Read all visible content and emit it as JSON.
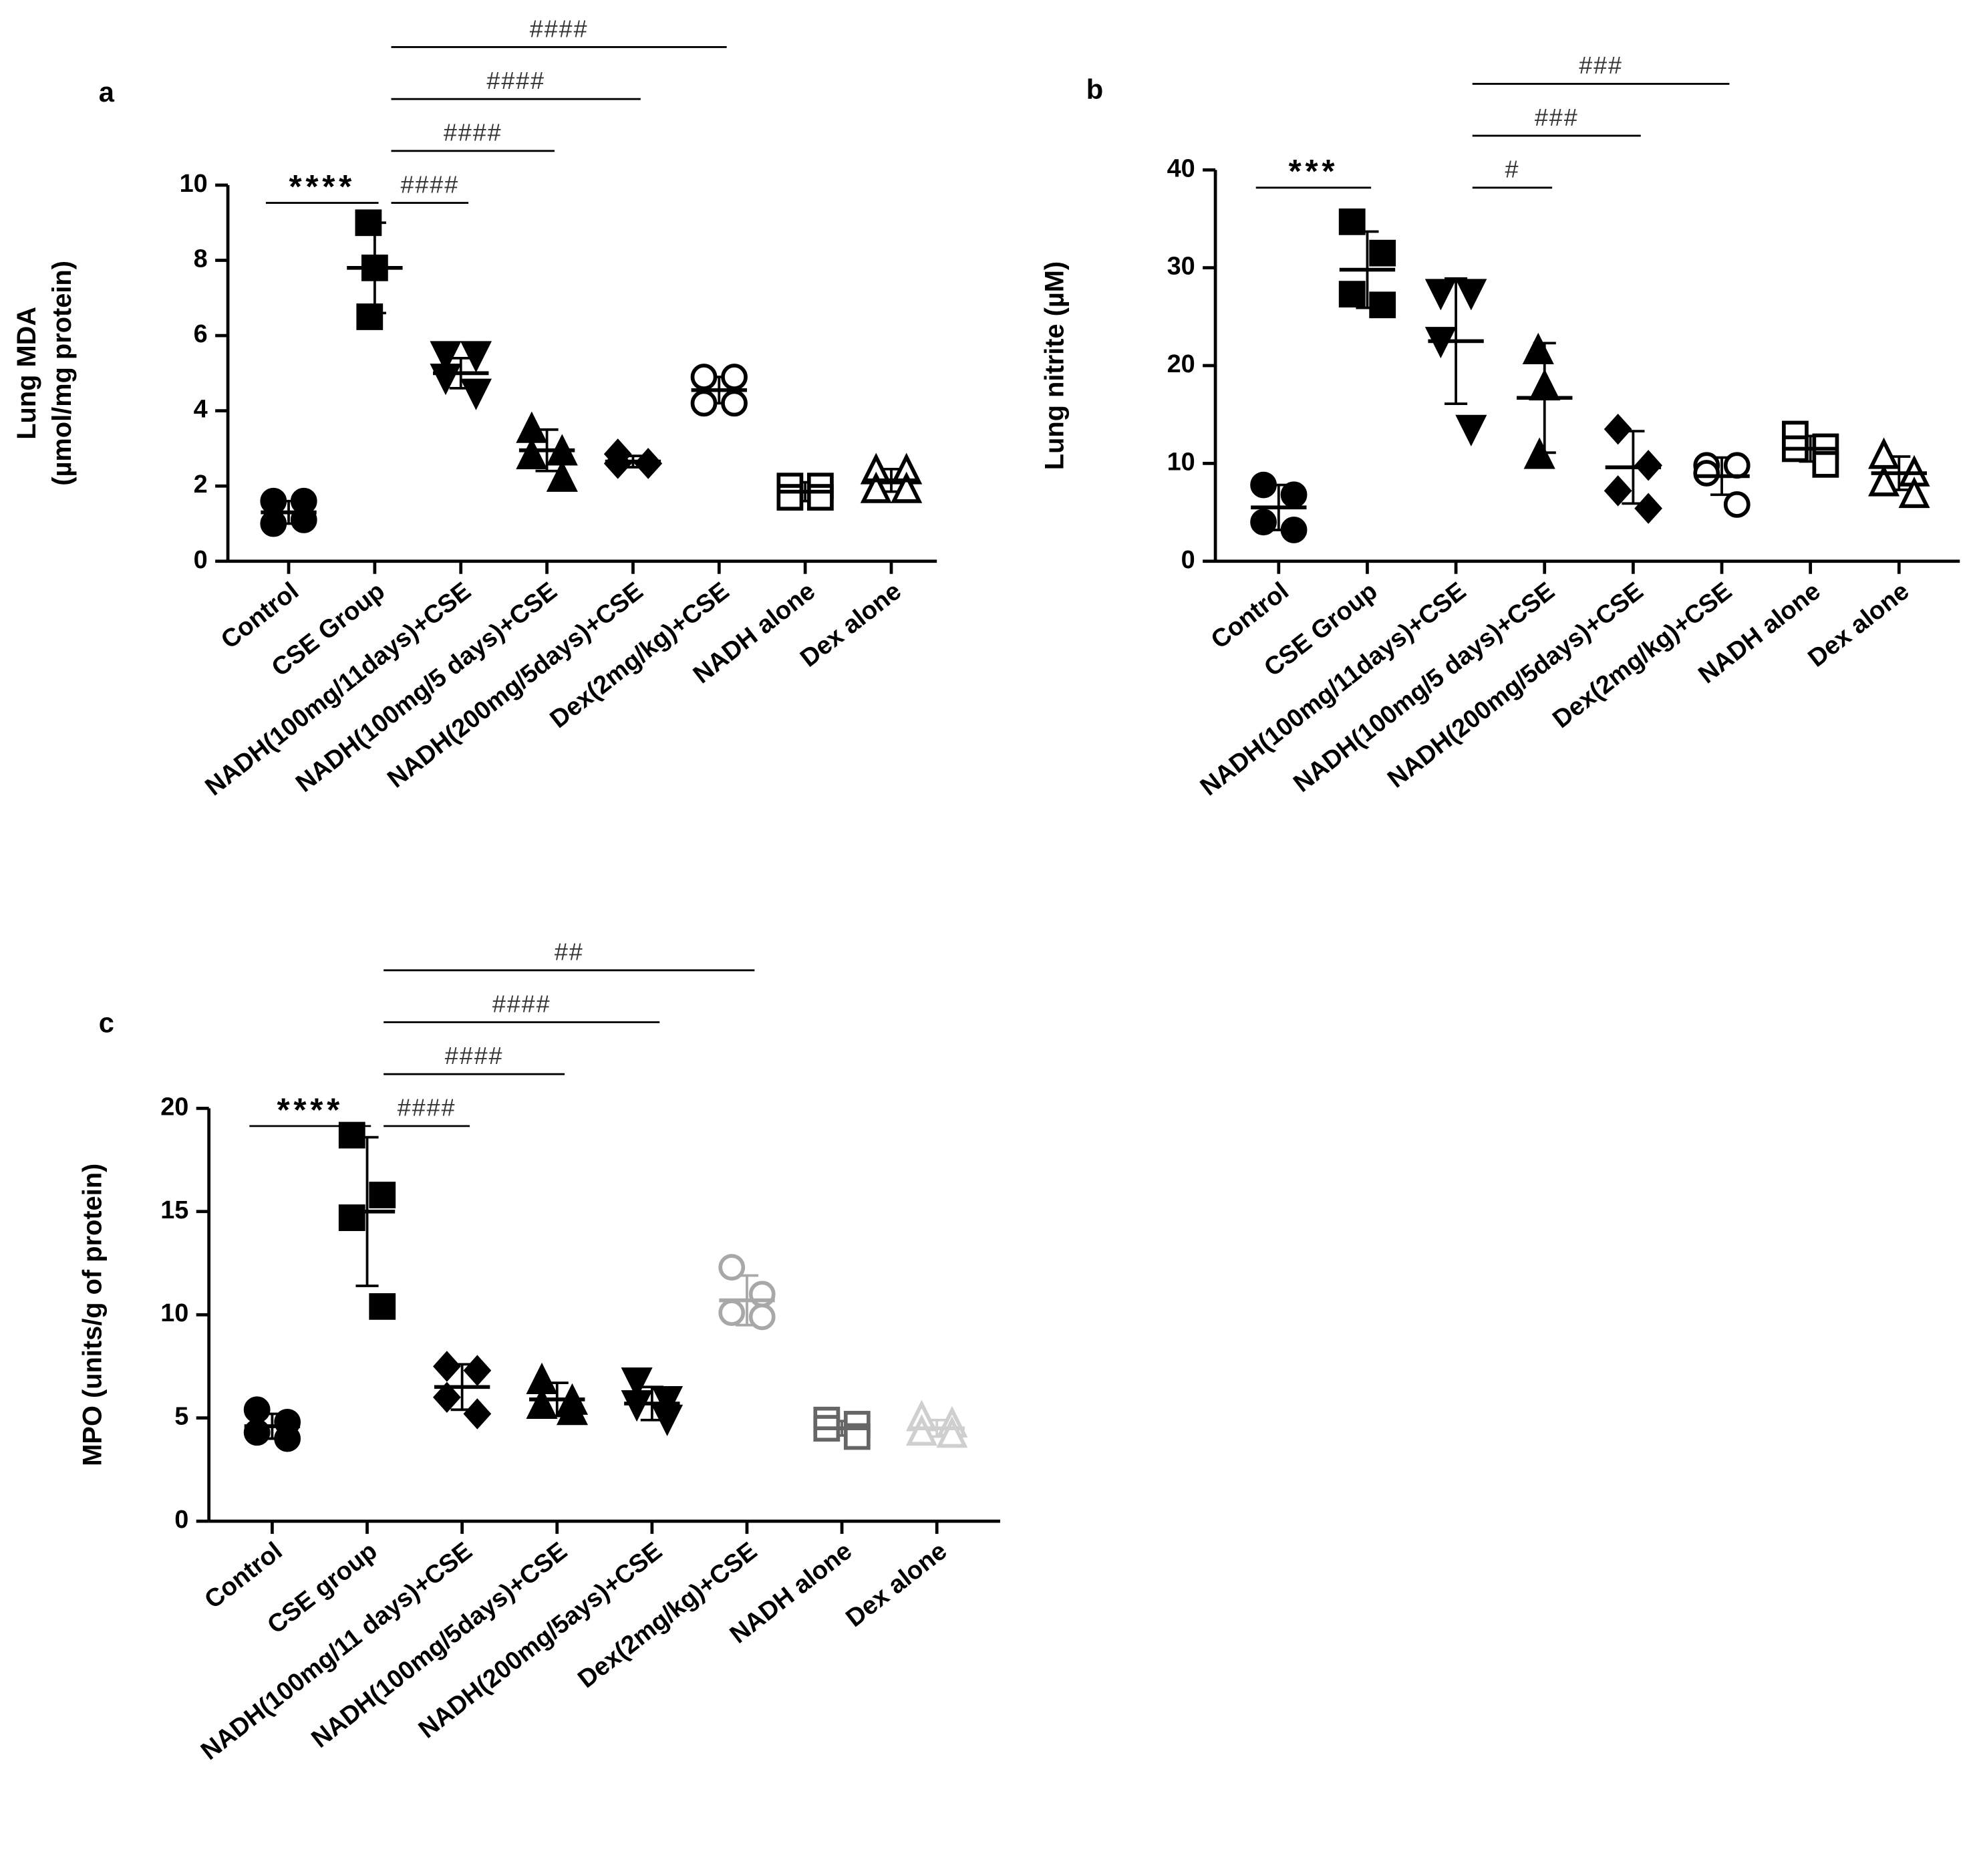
{
  "chart_data": [
    {
      "type": "dotplot",
      "panel": "a",
      "ylabel": [
        "Lung MDA",
        "(µmol/mg protein)"
      ],
      "ylim": [
        0,
        10
      ],
      "yticks": [
        0,
        2,
        4,
        6,
        8,
        10
      ],
      "categories": [
        "Control",
        "CSE Group",
        "NADH(100mg/11days)+CSE",
        "NADH(100mg/5 days)+CSE",
        "NADH(200mg/5days)+CSE",
        "Dex(2mg/kg)+CSE",
        "NADH alone",
        "Dex alone"
      ],
      "groups": [
        {
          "values": [
            1.6,
            1.6,
            1.0,
            1.1
          ],
          "mean": 1.3,
          "sd": 0.3,
          "marker": "circle",
          "filled": true,
          "color": "#000000"
        },
        {
          "values": [
            9.0,
            7.8,
            6.5
          ],
          "mean": 7.8,
          "sd": 1.2,
          "marker": "square",
          "filled": true,
          "color": "#000000"
        },
        {
          "values": [
            5.5,
            5.5,
            4.9,
            4.5
          ],
          "mean": 5.0,
          "sd": 0.4,
          "marker": "triangle-down",
          "filled": true,
          "color": "#000000"
        },
        {
          "values": [
            3.5,
            2.9,
            2.8,
            2.2
          ],
          "mean": 2.95,
          "sd": 0.55,
          "marker": "triangle-up",
          "filled": true,
          "color": "#000000"
        },
        {
          "values": [
            2.85,
            2.6,
            2.6,
            2.6
          ],
          "mean": 2.65,
          "sd": 0.15,
          "marker": "diamond",
          "filled": true,
          "color": "#000000"
        },
        {
          "values": [
            4.9,
            4.9,
            4.2,
            4.2
          ],
          "mean": 4.55,
          "sd": 0.35,
          "marker": "circle",
          "filled": false,
          "color": "#000000"
        },
        {
          "values": [
            2.0,
            2.0,
            1.7,
            1.7
          ],
          "mean": 1.85,
          "sd": 0.25,
          "marker": "square",
          "filled": false,
          "color": "#000000"
        },
        {
          "values": [
            2.4,
            2.4,
            1.9,
            1.9
          ],
          "mean": 2.15,
          "sd": 0.3,
          "marker": "triangle-up",
          "filled": false,
          "color": "#000000"
        }
      ],
      "brackets": [
        {
          "text": "****",
          "from": "Control",
          "to": "CSE Group"
        },
        {
          "text": "####",
          "from": "CSE Group",
          "to": "NADH(100mg/11days)+CSE"
        },
        {
          "text": "####",
          "from": "CSE Group",
          "to": "NADH(100mg/5 days)+CSE"
        },
        {
          "text": "####",
          "from": "CSE Group",
          "to": "NADH(200mg/5days)+CSE"
        },
        {
          "text": "####",
          "from": "CSE Group",
          "to": "Dex(2mg/kg)+CSE"
        }
      ]
    },
    {
      "type": "dotplot",
      "panel": "b",
      "ylabel": [
        "Lung nitrite (µM)"
      ],
      "ylim": [
        0,
        40
      ],
      "yticks": [
        0,
        10,
        20,
        30,
        40
      ],
      "categories": [
        "Control",
        "CSE Group",
        "NADH(100mg/11days)+CSE",
        "NADH(100mg/5 days)+CSE",
        "NADH(200mg/5days)+CSE",
        "Dex(2mg/kg)+CSE",
        "NADH alone",
        "Dex alone"
      ],
      "groups": [
        {
          "values": [
            7.8,
            6.8,
            4.0,
            3.2
          ],
          "mean": 5.5,
          "sd": 2.3,
          "marker": "circle",
          "filled": true,
          "color": "#000000"
        },
        {
          "values": [
            34.7,
            31.5,
            27.3,
            26.2
          ],
          "mean": 29.8,
          "sd": 3.9,
          "marker": "square",
          "filled": true,
          "color": "#000000"
        },
        {
          "values": [
            27.5,
            27.5,
            22.6,
            13.6
          ],
          "mean": 22.5,
          "sd": 6.4,
          "marker": "triangle-down",
          "filled": true,
          "color": "#000000"
        },
        {
          "values": [
            21.5,
            17.8,
            10.8
          ],
          "mean": 16.7,
          "sd": 5.6,
          "marker": "triangle-up",
          "filled": true,
          "color": "#000000"
        },
        {
          "values": [
            13.5,
            9.8,
            7.2,
            5.4
          ],
          "mean": 9.6,
          "sd": 3.7,
          "marker": "diamond",
          "filled": true,
          "color": "#000000"
        },
        {
          "values": [
            9.8,
            9.8,
            9.0,
            5.8
          ],
          "mean": 8.7,
          "sd": 1.9,
          "marker": "circle",
          "filled": false,
          "color": "#000000"
        },
        {
          "values": [
            13.0,
            11.7,
            11.5,
            9.9
          ],
          "mean": 11.5,
          "sd": 1.3,
          "marker": "square",
          "filled": false,
          "color": "#000000"
        },
        {
          "values": [
            10.8,
            9.0,
            8.0,
            6.8
          ],
          "mean": 9.0,
          "sd": 1.7,
          "marker": "triangle-up",
          "filled": false,
          "color": "#000000"
        }
      ],
      "brackets": [
        {
          "text": "***",
          "from": "Control",
          "to": "CSE Group"
        },
        {
          "text": "#",
          "from": "NADH(100mg/11days)+CSE",
          "to": "NADH(100mg/5 days)+CSE"
        },
        {
          "text": "###",
          "from": "NADH(100mg/11days)+CSE",
          "to": "NADH(200mg/5days)+CSE"
        },
        {
          "text": "###",
          "from": "NADH(100mg/11days)+CSE",
          "to": "Dex(2mg/kg)+CSE"
        }
      ]
    },
    {
      "type": "dotplot",
      "panel": "c",
      "ylabel": [
        "MPO (units/g of protein)"
      ],
      "ylim": [
        0,
        20
      ],
      "yticks": [
        0,
        5,
        10,
        15,
        20
      ],
      "categories": [
        "Control",
        "CSE group",
        "NADH(100mg/11 days)+CSE",
        "NADH(100mg/5days)+CSE",
        "NADH(200mg/5ays)+CSE",
        "Dex(2mg/kg)+CSE",
        "NADH alone",
        "Dex alone"
      ],
      "groups": [
        {
          "values": [
            5.4,
            4.8,
            4.3,
            4.0
          ],
          "mean": 4.6,
          "sd": 0.6,
          "marker": "circle",
          "filled": true,
          "color": "#000000"
        },
        {
          "values": [
            18.7,
            15.8,
            14.7,
            10.4
          ],
          "mean": 15.0,
          "sd": 3.6,
          "marker": "square",
          "filled": true,
          "color": "#000000"
        },
        {
          "values": [
            7.5,
            7.3,
            6.0,
            5.2
          ],
          "mean": 6.5,
          "sd": 1.1,
          "marker": "diamond",
          "filled": true,
          "color": "#000000"
        },
        {
          "values": [
            6.8,
            5.8,
            5.6,
            5.3
          ],
          "mean": 5.9,
          "sd": 0.8,
          "marker": "triangle-up",
          "filled": true,
          "color": "#000000"
        },
        {
          "values": [
            6.8,
            5.9,
            5.7,
            5.0
          ],
          "mean": 5.7,
          "sd": 0.8,
          "marker": "triangle-down",
          "filled": true,
          "color": "#000000"
        },
        {
          "values": [
            12.3,
            11.0,
            10.1,
            9.9
          ],
          "mean": 10.7,
          "sd": 1.2,
          "marker": "circle",
          "filled": false,
          "color": "#a8a8a8"
        },
        {
          "values": [
            4.9,
            4.7,
            4.5,
            4.1
          ],
          "mean": 4.5,
          "sd": 0.35,
          "marker": "square",
          "filled": false,
          "color": "#666666"
        },
        {
          "values": [
            5.0,
            4.7,
            4.3,
            4.2
          ],
          "mean": 4.5,
          "sd": 0.4,
          "marker": "triangle-up",
          "filled": false,
          "color": "#cfcfcf"
        }
      ],
      "brackets": [
        {
          "text": "****",
          "from": "Control",
          "to": "CSE group"
        },
        {
          "text": "####",
          "from": "CSE group",
          "to": "NADH(100mg/11 days)+CSE"
        },
        {
          "text": "####",
          "from": "CSE group",
          "to": "NADH(100mg/5days)+CSE"
        },
        {
          "text": "####",
          "from": "CSE group",
          "to": "NADH(200mg/5ays)+CSE"
        },
        {
          "text": "##",
          "from": "CSE group",
          "to": "Dex(2mg/kg)+CSE"
        }
      ]
    }
  ]
}
